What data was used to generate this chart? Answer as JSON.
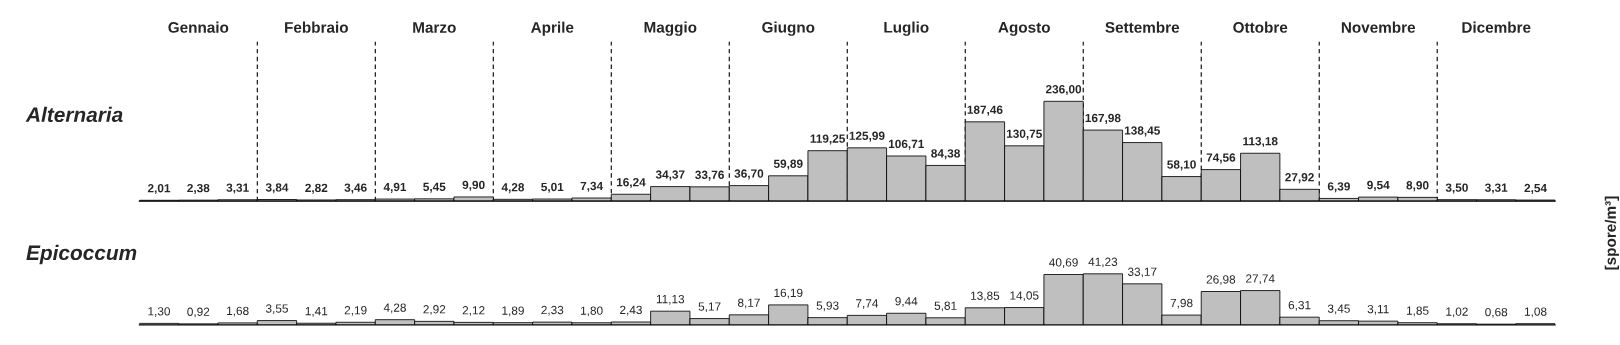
{
  "chart_data": [
    {
      "type": "bar",
      "title": "Alternaria",
      "ylabel": "[spore/m³]",
      "tick_labels": "x",
      "categories": [
        null,
        "Gennaio",
        null,
        null,
        "Febbraio",
        null,
        null,
        "Marzo",
        null,
        null,
        "Aprile",
        null,
        null,
        "Maggio",
        null,
        null,
        "Giugno",
        null,
        null,
        "Luglio",
        null,
        null,
        "Agosto",
        null,
        null,
        "Settembre",
        null,
        null,
        "Ottobre",
        null,
        null,
        "Novembre",
        null,
        null,
        "Dicembre",
        null
      ],
      "series": [
        {
          "color": "#bfbfbf",
          "values": [
            2.01,
            2.38,
            3.31,
            3.84,
            2.82,
            3.46,
            4.91,
            5.45,
            9.9,
            4.28,
            5.01,
            7.34,
            16.24,
            34.37,
            33.76,
            36.7,
            59.89,
            119.25,
            125.99,
            106.71,
            84.38,
            187.46,
            130.75,
            236.0,
            167.98,
            138.45,
            58.1,
            74.56,
            113.18,
            27.92,
            6.39,
            9.54,
            8.9,
            3.5,
            3.31,
            2.54
          ],
          "value_labels": [
            "2,01",
            "2,38",
            "3,31",
            "3,84",
            "2,82",
            "3,46",
            "4,91",
            "5,45",
            "9,90",
            "4,28",
            "5,01",
            "7,34",
            "16,24",
            "34,37",
            "33,76",
            "36,70",
            "59,89",
            "119,25",
            "125,99",
            "106,71",
            "84,38",
            "187,46",
            "130,75",
            "236,00",
            "167,98",
            "138,45",
            "58,10",
            "74,56",
            "113,18",
            "27,92",
            "6,39",
            "9,54",
            "8,90",
            "3,50",
            "3,31",
            "2,54"
          ]
        }
      ]
    },
    {
      "type": "bar",
      "title": "Epicoccum",
      "tick_labels": false,
      "categories": [
        null,
        null,
        null,
        null,
        null,
        null,
        null,
        null,
        null,
        null,
        null,
        null,
        null,
        null,
        null,
        null,
        null,
        null,
        null,
        null,
        null,
        null,
        null,
        null,
        null,
        null,
        null,
        null,
        null,
        null,
        null,
        null,
        null,
        null,
        null,
        null
      ],
      "series": [
        {
          "color": "#bfbfbf",
          "values": [
            1.3,
            0.92,
            1.68,
            3.55,
            1.41,
            2.19,
            4.28,
            2.92,
            2.12,
            1.89,
            2.33,
            1.8,
            2.43,
            11.13,
            5.17,
            8.17,
            16.19,
            5.93,
            7.74,
            9.44,
            5.81,
            13.85,
            14.05,
            40.69,
            41.23,
            33.17,
            7.98,
            26.98,
            27.74,
            6.31,
            3.45,
            3.11,
            1.85,
            1.02,
            0.68,
            1.08
          ],
          "value_labels": [
            "1,30",
            "0,92",
            "1,68",
            "3,55",
            "1,41",
            "2,19",
            "4,28",
            "2,92",
            "2,12",
            "1,89",
            "2,33",
            "1,80",
            "2,43",
            "11,13",
            "5,17",
            "8,17",
            "16,19",
            "5,93",
            "7,74",
            "9,44",
            "5,81",
            "13,85",
            "14,05",
            "40,69",
            "41,23",
            "33,17",
            "7,98",
            "26,98",
            "27,74",
            "6,31",
            "3,45",
            "3,11",
            "1,85",
            "1,02",
            "0,68",
            "1,08"
          ]
        }
      ]
    }
  ]
}
